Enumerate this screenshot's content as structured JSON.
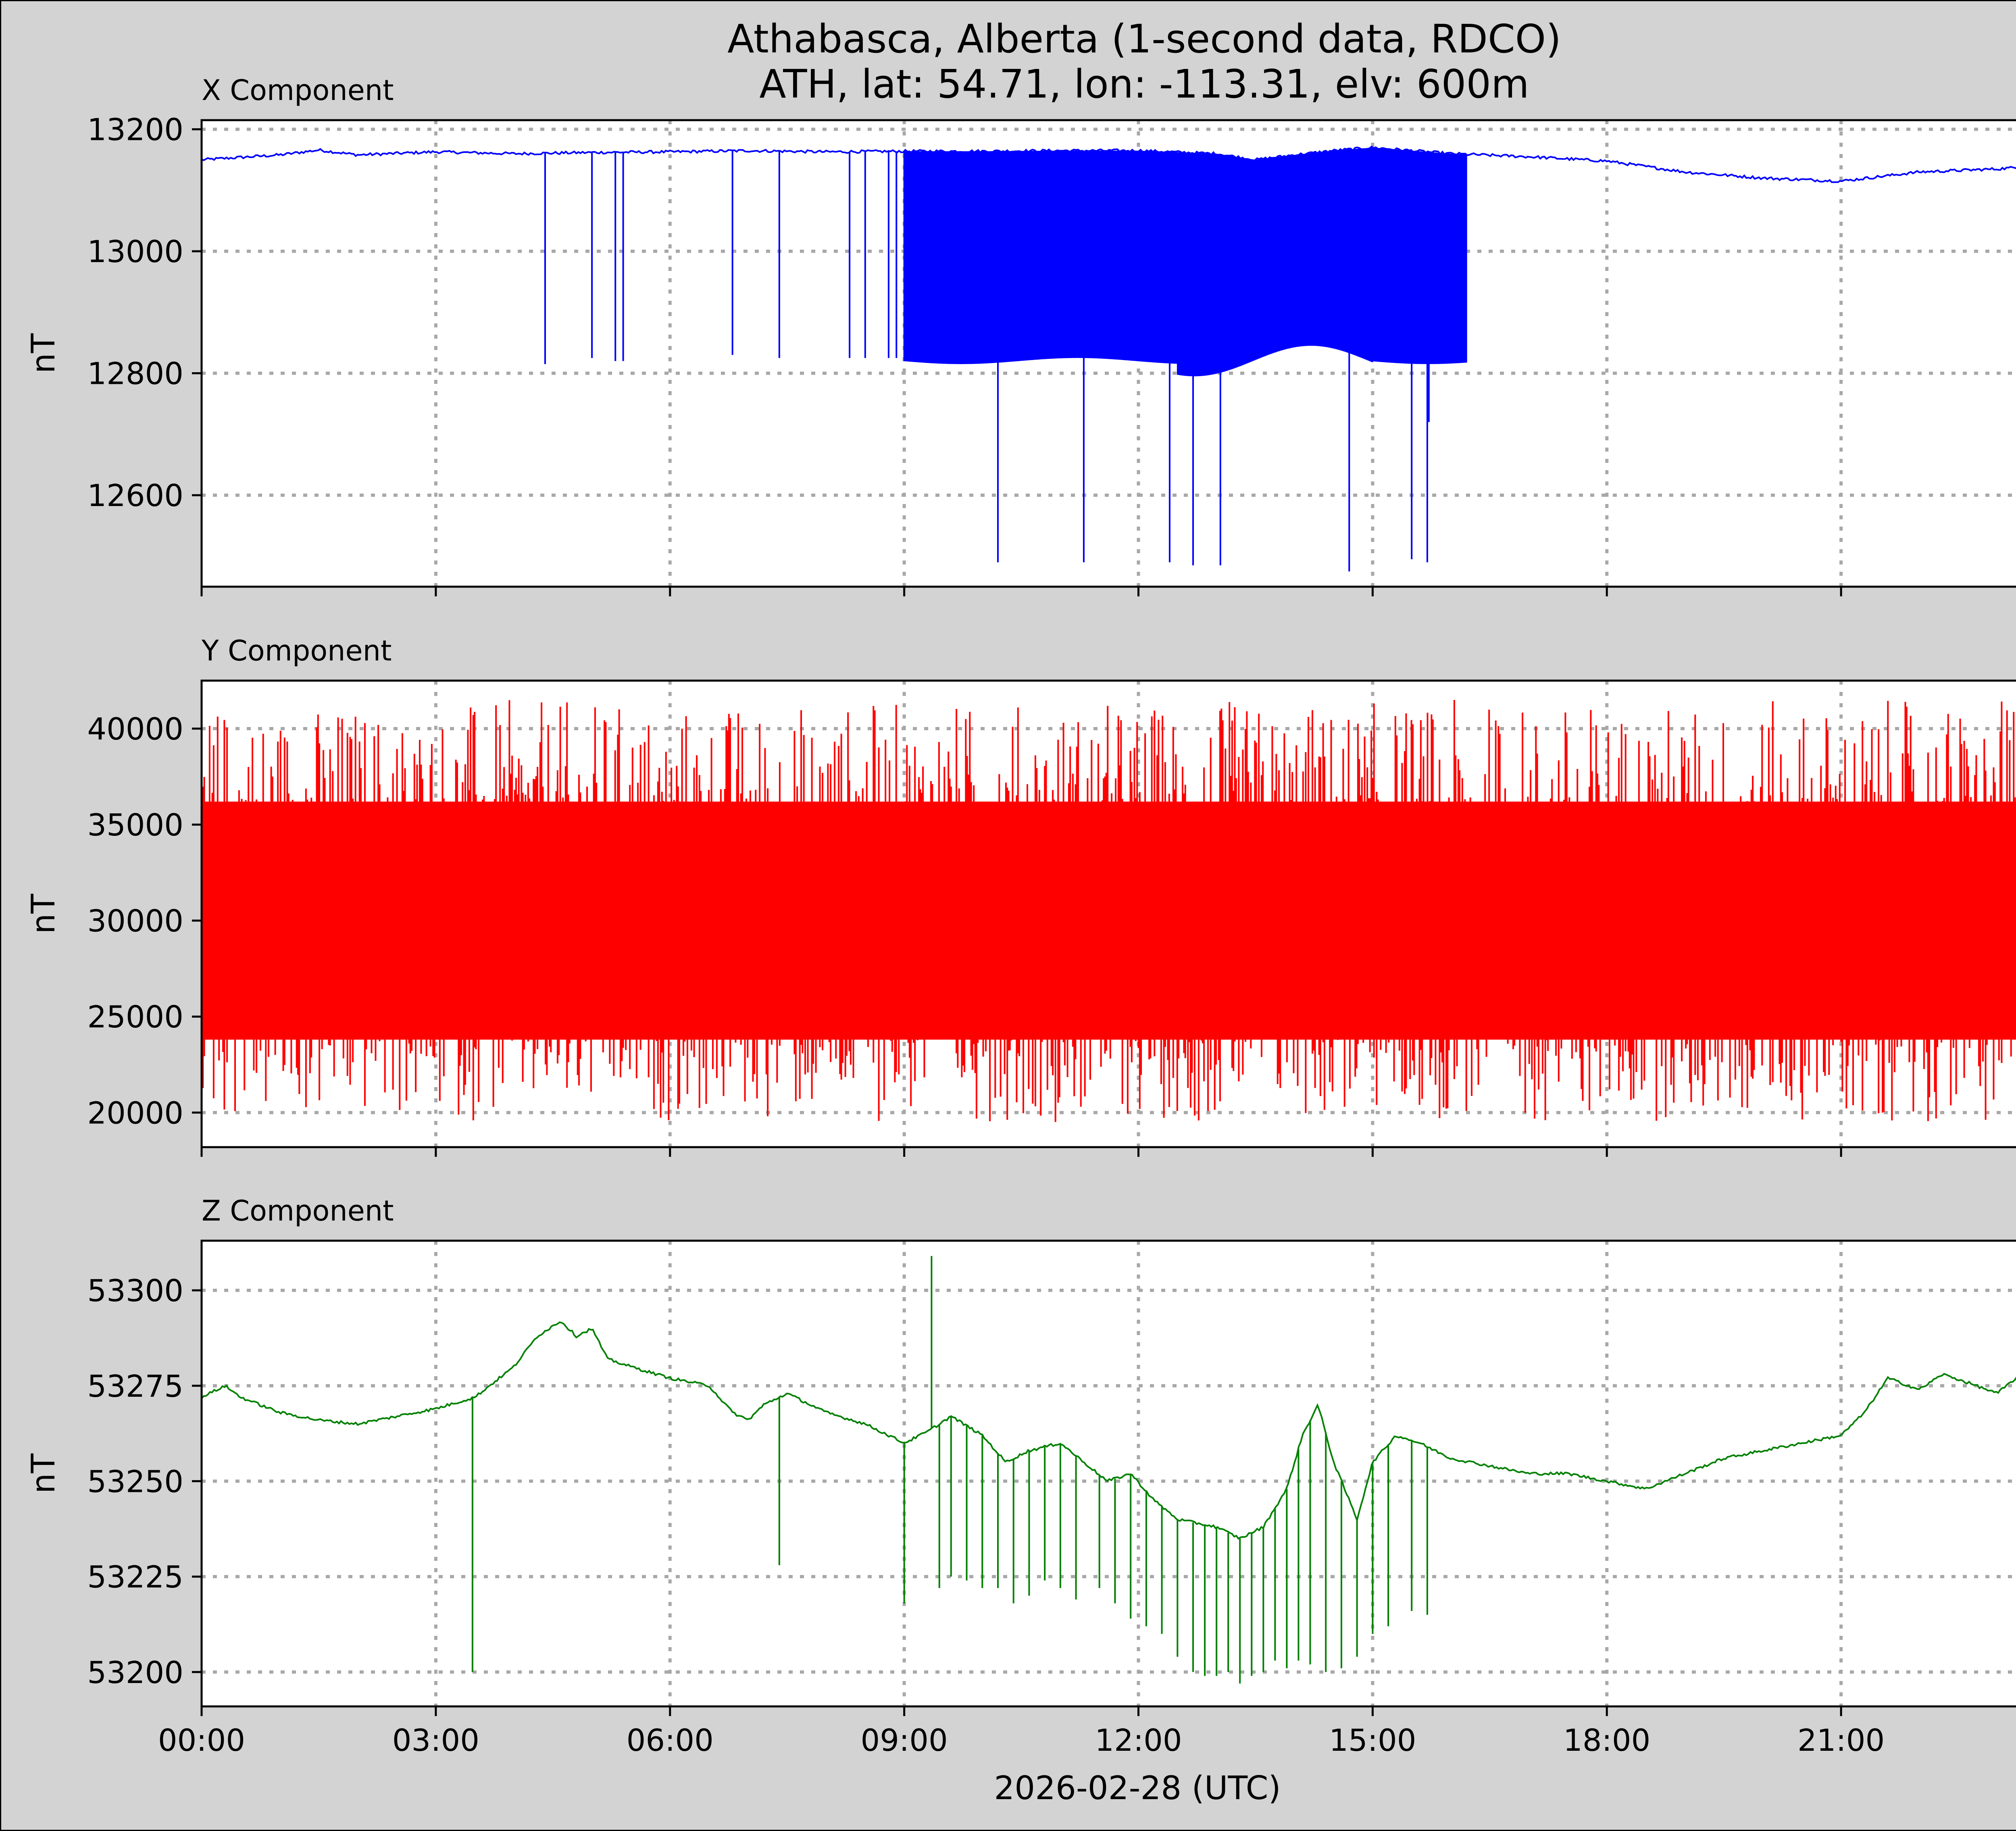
{
  "figure": {
    "title_line1": "Athabasca, Alberta (1-second data, RDCO)",
    "title_line2": "ATH, lat: 54.71, lon: -113.31, elv: 600m",
    "background": "#d3d3d3"
  },
  "chart_data": [
    {
      "type": "line",
      "title": "X Component",
      "ylabel": "nT",
      "xlabel": "",
      "color": "#0000ff",
      "xlim": [
        0,
        24
      ],
      "ylim": [
        12450,
        13215
      ],
      "yticks": [
        12600,
        12800,
        13000,
        13200
      ],
      "xticks": [
        0,
        3,
        6,
        9,
        12,
        15,
        18,
        21
      ],
      "grid": true,
      "baseline": {
        "x": [
          0,
          1,
          1.5,
          2,
          3,
          4,
          5,
          6,
          7,
          8,
          9,
          10,
          11,
          12,
          13,
          13.5,
          14,
          14.5,
          15,
          15.5,
          16,
          17,
          18,
          19,
          20,
          21,
          22,
          23,
          24
        ],
        "y": [
          13150,
          13158,
          13166,
          13158,
          13163,
          13160,
          13162,
          13163,
          13165,
          13163,
          13164,
          13164,
          13165,
          13165,
          13160,
          13150,
          13158,
          13165,
          13170,
          13165,
          13160,
          13155,
          13148,
          13130,
          13120,
          13115,
          13130,
          13135,
          13145
        ]
      },
      "dense_band": {
        "x_start": 9.0,
        "x_end": 16.2,
        "low": 12820
      },
      "spikes": {
        "x": [
          4.4,
          5.0,
          5.3,
          5.4,
          6.8,
          7.4,
          8.3,
          8.5,
          8.8,
          8.9,
          10.2,
          11.3,
          12.4,
          12.7,
          13.05,
          14.7,
          15.5,
          15.7,
          15.72
        ],
        "y": [
          12815,
          12825,
          12820,
          12820,
          12830,
          12825,
          12825,
          12825,
          12825,
          12825,
          12490,
          12490,
          12490,
          12485,
          12485,
          12475,
          12495,
          12490,
          12720
        ]
      }
    },
    {
      "type": "line",
      "title": "Y Component",
      "ylabel": "nT",
      "xlabel": "",
      "color": "#ff0000",
      "xlim": [
        0,
        24
      ],
      "ylim": [
        18200,
        42500
      ],
      "yticks": [
        20000,
        25000,
        30000,
        35000,
        40000
      ],
      "xticks": [
        0,
        3,
        6,
        9,
        12,
        15,
        18,
        21
      ],
      "grid": true,
      "noise_band": {
        "center": 30000,
        "dense_low": 25000,
        "dense_high": 35000,
        "peak_low": 19500,
        "peak_high": 41500
      }
    },
    {
      "type": "line",
      "title": "Z Component",
      "ylabel": "nT",
      "xlabel": "2026-02-28 (UTC)",
      "color": "#008000",
      "xlim": [
        0,
        24
      ],
      "ylim": [
        53191,
        53313
      ],
      "yticks": [
        53200,
        53225,
        53250,
        53275,
        53300
      ],
      "xticks": [
        0,
        3,
        6,
        9,
        12,
        15,
        18,
        21
      ],
      "xticklabels": [
        "00:00",
        "03:00",
        "06:00",
        "09:00",
        "12:00",
        "15:00",
        "18:00",
        "21:00"
      ],
      "grid": true,
      "baseline": {
        "x": [
          0,
          0.3,
          0.5,
          1,
          1.5,
          2,
          2.5,
          3,
          3.5,
          4,
          4.3,
          4.6,
          4.8,
          5.0,
          5.2,
          5.5,
          6,
          6.5,
          6.8,
          7,
          7.2,
          7.5,
          8,
          8.5,
          9,
          9.3,
          9.6,
          10,
          10.3,
          10.6,
          11,
          11.3,
          11.6,
          11.9,
          12.2,
          12.5,
          13,
          13.3,
          13.6,
          13.9,
          14.1,
          14.3,
          14.5,
          14.8,
          15,
          15.3,
          15.6,
          16,
          16.5,
          17,
          17.5,
          18,
          18.5,
          19,
          19.5,
          20,
          20.5,
          21,
          21.3,
          21.6,
          22,
          22.3,
          22.6,
          23,
          23.3,
          23.6,
          24
        ],
        "y": [
          53272,
          53275,
          53272,
          53268,
          53266,
          53265,
          53267,
          53269,
          53272,
          53280,
          53288,
          53292,
          53288,
          53290,
          53282,
          53280,
          53277,
          53275,
          53268,
          53266,
          53270,
          53273,
          53268,
          53265,
          53260,
          53263,
          53267,
          53262,
          53255,
          53258,
          53260,
          53255,
          53250,
          53252,
          53245,
          53240,
          53238,
          53235,
          53238,
          53248,
          53262,
          53270,
          53255,
          53240,
          53255,
          53262,
          53260,
          53256,
          53254,
          53252,
          53252,
          53250,
          53248,
          53252,
          53256,
          53258,
          53260,
          53262,
          53268,
          53277,
          53274,
          53278,
          53276,
          53273,
          53278,
          53280,
          53276
        ]
      },
      "spikes": {
        "x": [
          3.47,
          7.4,
          9.0,
          9.35,
          9.45,
          9.6,
          9.8,
          10.0,
          10.2,
          10.4,
          10.6,
          10.8,
          11.0,
          11.2,
          11.5,
          11.7,
          11.9,
          12.1,
          12.3,
          12.5,
          12.7,
          12.85,
          13.0,
          13.15,
          13.3,
          13.45,
          13.6,
          13.75,
          13.9,
          14.05,
          14.2,
          14.4,
          14.6,
          14.8,
          15.0,
          15.2,
          15.5,
          15.7
        ],
        "y": [
          53200,
          53228,
          53218,
          53309,
          53222,
          53225,
          53224,
          53222,
          53222,
          53218,
          53220,
          53224,
          53222,
          53219,
          53222,
          53218,
          53214,
          53212,
          53210,
          53204,
          53200,
          53199,
          53199,
          53200,
          53197,
          53199,
          53200,
          53203,
          53201,
          53203,
          53202,
          53200,
          53201,
          53204,
          53210,
          53212,
          53216,
          53215
        ]
      }
    }
  ]
}
